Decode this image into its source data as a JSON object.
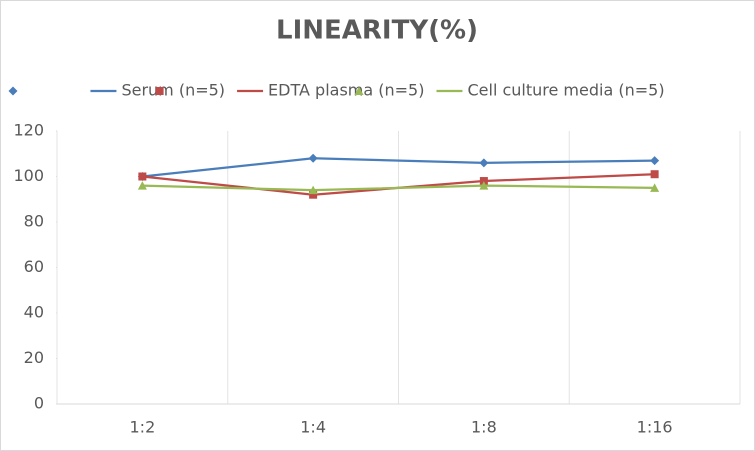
{
  "chart_data": {
    "type": "line",
    "title": "LINEARITY(%)",
    "categories": [
      "1:2",
      "1:4",
      "1:8",
      "1:16"
    ],
    "series": [
      {
        "name": "Serum (n=5)",
        "color": "#4a7ebb",
        "marker": "diamond",
        "values": [
          100,
          108,
          106,
          107
        ]
      },
      {
        "name": "EDTA plasma (n=5)",
        "color": "#be4b48",
        "marker": "square",
        "values": [
          100,
          92,
          98,
          101
        ]
      },
      {
        "name": "Cell culture media (n=5)",
        "color": "#98b954",
        "marker": "triangle",
        "values": [
          96,
          94,
          96,
          95
        ]
      }
    ],
    "ylim": [
      0,
      120
    ],
    "yticks": [
      0,
      20,
      40,
      60,
      80,
      100,
      120
    ],
    "grid": true,
    "legend": "top"
  }
}
